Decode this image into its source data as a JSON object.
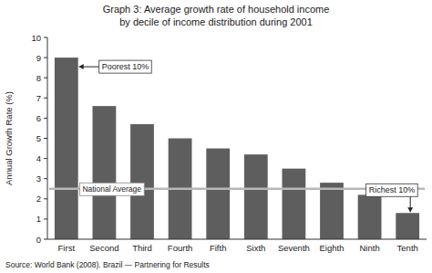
{
  "chart_data": {
    "type": "bar",
    "title": "Graph 3: Average growth rate of household income",
    "subtitle": "by decile of income distribution during 2001",
    "y_label": "Annual Growth Rate (%)",
    "categories": [
      "First",
      "Second",
      "Third",
      "Fourth",
      "Fifth",
      "Sixth",
      "Seventh",
      "Eighth",
      "Ninth",
      "Tenth"
    ],
    "values": [
      9.0,
      6.6,
      5.7,
      5.0,
      4.5,
      4.2,
      3.5,
      2.8,
      2.2,
      1.3
    ],
    "color": "#5e5e5e",
    "ylim": [
      0,
      10
    ],
    "yticks": [
      0,
      1,
      2,
      3,
      4,
      5,
      6,
      7,
      8,
      9,
      10
    ],
    "grid": false,
    "national_average": {
      "label": "National Average",
      "value": 2.5
    },
    "annotations": [
      {
        "text": "Poorest 10%",
        "category": "First"
      },
      {
        "text": "Richest 10%",
        "category": "Tenth"
      }
    ],
    "source": "Source: World Bank (2008). Brazil — Partnering for Results"
  }
}
